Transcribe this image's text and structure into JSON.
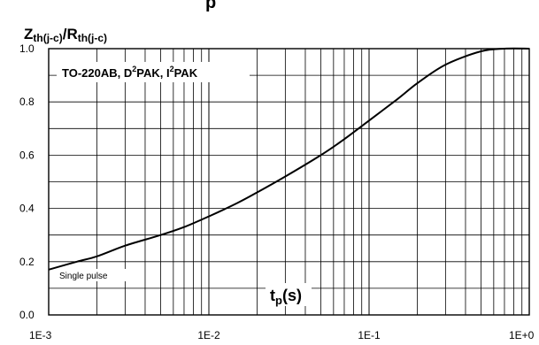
{
  "header_fragment": "p",
  "chart_data": {
    "type": "line",
    "title": "",
    "ylabel": {
      "Z": "Z",
      "Z_sub": "th(j-c)",
      "slash": "/",
      "R": "R",
      "R_sub": "th(j-c)"
    },
    "xlabel": {
      "t": "t",
      "t_sub": "p",
      "unit": "(s)"
    },
    "x_scale": "log",
    "xlim": [
      0.001,
      1.0
    ],
    "ylim": [
      0.0,
      1.0
    ],
    "grid": true,
    "xticks": [
      0.001,
      0.01,
      0.1,
      1.0
    ],
    "xtick_labels": [
      "1E-3",
      "1E-2",
      "1E-1",
      "1E+0"
    ],
    "yticks": [
      0.0,
      0.2,
      0.4,
      0.6,
      0.8,
      1.0
    ],
    "ytick_labels": [
      "0.0",
      "0.2",
      "0.4",
      "0.6",
      "0.8",
      "1.0"
    ],
    "annotations": {
      "package": {
        "p1": "TO-220AB, D",
        "sup1": "2",
        "p2": "PAK, I",
        "sup2": "2",
        "p3": "PAK"
      },
      "single_pulse": "Single pulse"
    },
    "series": [
      {
        "x": [
          0.001,
          0.0015,
          0.002,
          0.003,
          0.005,
          0.007,
          0.01,
          0.015,
          0.02,
          0.03,
          0.05,
          0.07,
          0.1,
          0.15,
          0.2,
          0.3,
          0.5,
          0.7,
          1.0
        ],
        "y": [
          0.17,
          0.2,
          0.22,
          0.26,
          0.3,
          0.33,
          0.37,
          0.42,
          0.46,
          0.52,
          0.6,
          0.66,
          0.73,
          0.81,
          0.87,
          0.94,
          0.99,
          1.0,
          1.0
        ]
      }
    ]
  }
}
